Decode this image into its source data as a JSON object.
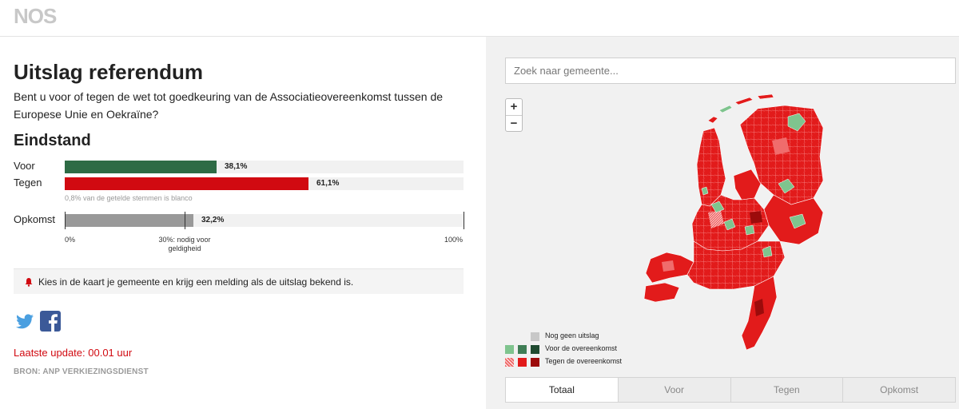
{
  "header": {
    "logo": "NOS"
  },
  "result": {
    "title": "Uitslag referendum",
    "question": "Bent u voor of tegen de wet tot goedkeuring van de Associatieovereenkomst tussen de Europese Unie en Oekraïne?",
    "subtitle": "Eindstand",
    "voor": {
      "label": "Voor",
      "percent_label": "38,1%",
      "value": 38.1,
      "color": "#2e6b45"
    },
    "tegen": {
      "label": "Tegen",
      "percent_label": "61,1%",
      "value": 61.1,
      "color": "#d10a11"
    },
    "blanco_note": "0,8% van de getelde stemmen is blanco",
    "turnout": {
      "label": "Opkomst",
      "percent_label": "32,2%",
      "value": 32.2,
      "threshold": 30,
      "color": "#999999",
      "axis_min_label": "0%",
      "axis_threshold_label": "30%: nodig voor geldigheid",
      "axis_max_label": "100%"
    },
    "notice": "Kies in de kaart je gemeente en krijg een melding als de uitslag bekend is.",
    "last_update": "Laatste update: 00.01 uur",
    "source": "BRON: ANP VERKIEZINGSDIENST"
  },
  "social": {
    "twitter_icon": "twitter-icon",
    "facebook_icon": "facebook-icon"
  },
  "map": {
    "search_placeholder": "Zoek naar gemeente...",
    "zoom_in": "+",
    "zoom_out": "−",
    "legend": {
      "no_result": "Nog geen uitslag",
      "voor": "Voor de overeenkomst",
      "tegen": "Tegen de overeenkomst"
    },
    "colors": {
      "no_result": "#c8c8c8",
      "voor_light": "#7fc48e",
      "voor_mid": "#3f7d55",
      "voor_dark": "#1f4a30",
      "tegen_light": "#f06c6c",
      "tegen_mid": "#e21b1b",
      "tegen_dark": "#9c0b0b"
    },
    "tabs": [
      {
        "label": "Totaal",
        "active": true
      },
      {
        "label": "Voor",
        "active": false
      },
      {
        "label": "Tegen",
        "active": false
      },
      {
        "label": "Opkomst",
        "active": false
      }
    ]
  }
}
